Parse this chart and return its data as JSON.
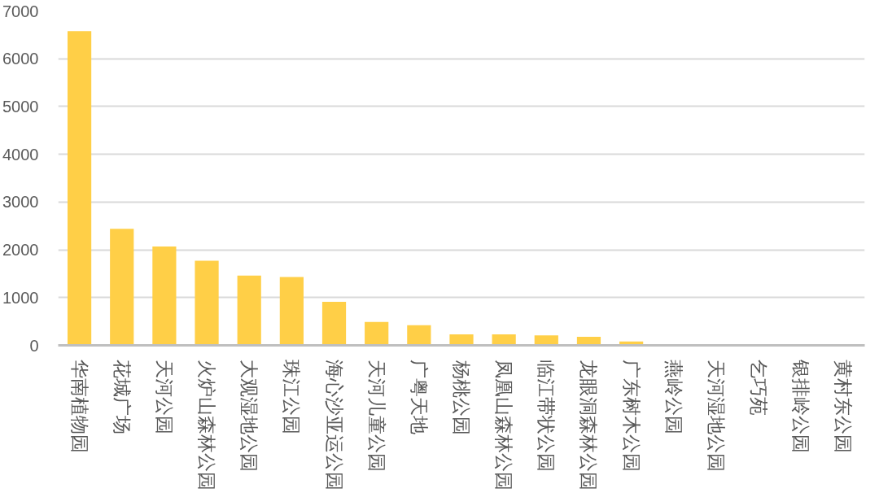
{
  "chart_data": {
    "type": "bar",
    "categories": [
      "华南植物园",
      "花城广场",
      "天河公园",
      "火炉山森林公园",
      "大观湿地公园",
      "珠江公园",
      "海心沙亚运公园",
      "天河儿童公园",
      "广粤天地",
      "杨桃公园",
      "凤凰山森林公园",
      "临江带状公园",
      "龙眼洞森林公园",
      "广东树木公园",
      "燕岭公园",
      "天河湿地公园",
      "乞巧苑",
      "银排岭公园",
      "黄村东公园"
    ],
    "values": [
      6580,
      2440,
      2070,
      1770,
      1460,
      1430,
      910,
      490,
      420,
      230,
      230,
      210,
      180,
      80,
      0,
      0,
      0,
      0,
      0
    ],
    "color": "#ffcf47",
    "ylim": [
      0,
      7000
    ],
    "yticks": [
      0,
      1000,
      2000,
      3000,
      4000,
      5000,
      6000,
      7000
    ],
    "grid": "y"
  }
}
